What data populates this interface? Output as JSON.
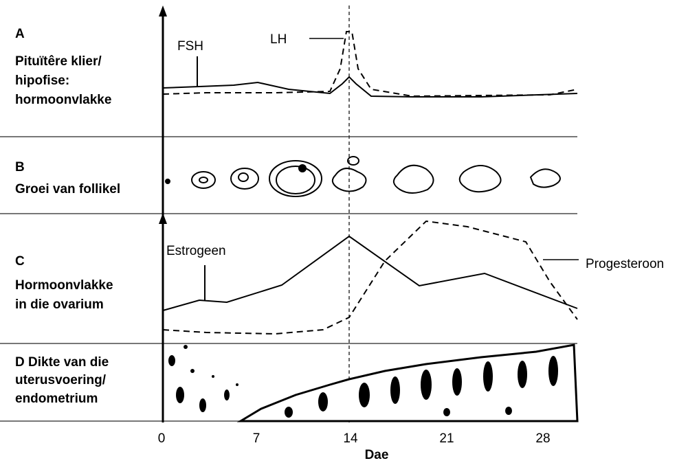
{
  "panels": [
    {
      "lines": [
        "A",
        "Pituïtêre klier/",
        "hipofise:",
        "hormoonvlakke"
      ],
      "curves": [
        "FSH",
        "LH"
      ]
    },
    {
      "lines": [
        "B",
        "Groei van follikel"
      ]
    },
    {
      "lines": [
        "C",
        "Hormoonvlakke",
        "in die ovarium"
      ],
      "curves": [
        "Estrogeen",
        "Progesteroon"
      ]
    },
    {
      "lines": [
        "D Dikte van die",
        "uterusvoering/",
        "endometrium"
      ]
    }
  ],
  "x_axis": {
    "ticks": [
      "0",
      "7",
      "14",
      "21",
      "28"
    ],
    "label": "Dae"
  }
}
